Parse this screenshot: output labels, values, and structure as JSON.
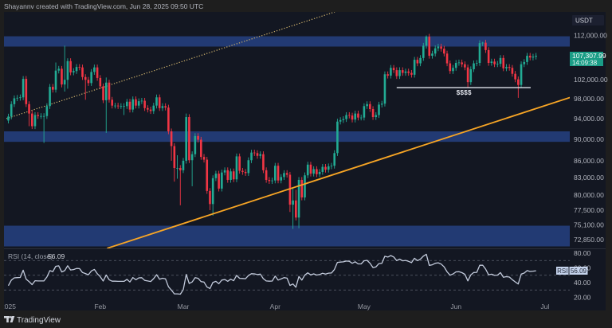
{
  "header": {
    "attribution": "Shayannv created with TradingView.com, Jun 28, 2025 09:50 UTC"
  },
  "price_axis": {
    "currency": "USDT",
    "last_price": "107,307.99",
    "countdown": "14:09:38",
    "labels": [
      {
        "text": "112,000.00",
        "price": 112.0
      },
      {
        "text": "102,000.00",
        "price": 102.0
      },
      {
        "text": "98,000.00",
        "price": 98.0
      },
      {
        "text": "94,000.00",
        "price": 94.0
      },
      {
        "text": "90,000.00",
        "price": 90.0
      },
      {
        "text": "86,000.00",
        "price": 86.0
      },
      {
        "text": "83,000.00",
        "price": 83.0
      },
      {
        "text": "80,000.00",
        "price": 80.0
      },
      {
        "text": "77,500.00",
        "price": 77.5
      },
      {
        "text": "75,100.00",
        "price": 75.1
      },
      {
        "text": "72,850.00",
        "price": 72.85
      }
    ]
  },
  "rsi": {
    "legend_name": "RSI (14, close)",
    "legend_value": "56.09",
    "tag_name": "RSI",
    "tag_value": "56.09",
    "axis_labels": [
      {
        "text": "80.00",
        "value": 80
      },
      {
        "text": "60.00",
        "value": 60
      },
      {
        "text": "40.00",
        "value": 40
      },
      {
        "text": "20.00",
        "value": 20
      }
    ]
  },
  "time_axis": {
    "labels": [
      {
        "text": "2025",
        "day": 0
      },
      {
        "text": "Feb",
        "day": 31
      },
      {
        "text": "Mar",
        "day": 59
      },
      {
        "text": "Apr",
        "day": 90
      },
      {
        "text": "May",
        "day": 120
      },
      {
        "text": "Jun",
        "day": 151
      },
      {
        "text": "Jul",
        "day": 181
      }
    ]
  },
  "annotations": {
    "liquidity_label": "$$$$"
  },
  "footer": {
    "brand": "TradingView"
  },
  "colors": {
    "background": "#131722",
    "outer": "#1e1e1e",
    "up": "#22ab94",
    "down": "#f23645",
    "zone": "#223a73",
    "support_line": "#f7a525",
    "channel_line": "#c9ad6a",
    "liquidity_line": "#e0e3eb",
    "rsi_line": "#c3cbdc",
    "rsi_levels": "#5d6270",
    "last_price_tag": "#1a9d86",
    "rsi_tag": "#c5d3ec"
  },
  "chart_data": {
    "type": "candlestick",
    "title": "Shayannv created with TradingView.com, Jun 28, 2025 09:50 UTC",
    "quote_currency": "USDT",
    "price_unit": "thousand USDT",
    "y_scale": "log",
    "ylim": [
      71.5,
      117.7
    ],
    "x_tick_labels": [
      "2025",
      "Feb",
      "Mar",
      "Apr",
      "May",
      "Jun",
      "Jul"
    ],
    "y_tick_labels": [
      "112,000.00",
      "102,000.00",
      "98,000.00",
      "94,000.00",
      "90,000.00",
      "86,000.00",
      "83,000.00",
      "80,000.00",
      "77,500.00",
      "75,100.00",
      "72,850.00"
    ],
    "last_price": 107307.99,
    "first_open": 93.6,
    "close": [
      94.4,
      96.9,
      98.1,
      98.2,
      98.3,
      102.2,
      96.9,
      95.0,
      92.5,
      94.7,
      94.5,
      94.5,
      94.5,
      96.5,
      100.5,
      99.9,
      104.0,
      104.4,
      101.0,
      102.0,
      106.1,
      103.6,
      103.9,
      104.8,
      104.7,
      102.6,
      102.0,
      101.3,
      103.7,
      104.7,
      102.4,
      100.6,
      97.7,
      101.4,
      97.8,
      96.6,
      96.6,
      96.5,
      96.5,
      96.5,
      97.4,
      95.8,
      97.9,
      96.6,
      97.5,
      97.6,
      96.1,
      95.8,
      95.5,
      96.6,
      98.3,
      96.1,
      96.5,
      96.2,
      91.5,
      88.7,
      84.7,
      84.7,
      84.3,
      86.0,
      94.3,
      86.1,
      87.2,
      90.6,
      89.9,
      86.7,
      86.2,
      80.7,
      78.5,
      82.9,
      83.7,
      81.1,
      83.9,
      84.3,
      82.6,
      84.1,
      82.7,
      86.8,
      84.2,
      84.0,
      83.8,
      86.1,
      87.5,
      87.4,
      86.9,
      87.2,
      84.3,
      82.6,
      82.4,
      82.5,
      85.1,
      82.5,
      83.1,
      83.8,
      83.5,
      78.4,
      79.1,
      76.3,
      82.6,
      79.6,
      83.4,
      85.3,
      83.7,
      84.5,
      83.6,
      84.0,
      84.9,
      84.4,
      85.0,
      85.1,
      87.4,
      93.4,
      93.7,
      93.9,
      94.7,
      94.6,
      93.8,
      95.0,
      94.2,
      94.2,
      96.5,
      96.9,
      95.9,
      94.3,
      94.7,
      96.8,
      97.0,
      103.2,
      102.9,
      104.6,
      104.1,
      102.8,
      104.1,
      103.5,
      103.8,
      103.5,
      103.1,
      106.4,
      105.6,
      106.8,
      109.6,
      111.7,
      107.3,
      107.8,
      109.0,
      109.4,
      108.9,
      107.8,
      105.6,
      103.9,
      104.6,
      105.7,
      105.8,
      105.4,
      104.7,
      101.5,
      104.3,
      105.6,
      105.7,
      110.2,
      110.3,
      108.6,
      105.7,
      106.0,
      105.4,
      105.5,
      106.8,
      104.5,
      104.8,
      104.6,
      103.3,
      102.1,
      100.9,
      105.4,
      105.9,
      107.3,
      106.9,
      107.1,
      107.3
    ],
    "wicks": {
      "5": {
        "h": 102.8
      },
      "7": {
        "l": 92.5
      },
      "12": {
        "l": 89.3
      },
      "16": {
        "h": 105.8
      },
      "19": {
        "h": 109.6,
        "l": 99.5
      },
      "20": {
        "l": 100.1
      },
      "26": {
        "l": 97.8
      },
      "33": {
        "h": 102.5,
        "l": 91.2
      },
      "39": {
        "l": 94.7
      },
      "55": {
        "l": 86.0
      },
      "56": {
        "l": 82.3
      },
      "57": {
        "h": 87.0,
        "l": 82.8
      },
      "58": {
        "l": 78.3
      },
      "60": {
        "h": 95.0
      },
      "62": {
        "l": 81.5
      },
      "68": {
        "l": 77.5
      },
      "69": {
        "l": 76.6
      },
      "95": {
        "l": 77.2
      },
      "96": {
        "h": 81.2,
        "l": 74.5
      },
      "97": {
        "h": 80.9
      },
      "98": {
        "l": 74.6
      },
      "141": {
        "h": 112.0
      },
      "155": {
        "l": 100.4
      },
      "160": {
        "h": 110.5
      },
      "172": {
        "l": 98.2
      }
    },
    "zones": [
      {
        "name": "resistance-zone-112k",
        "top": 111.8,
        "bottom": 109.4
      },
      {
        "name": "support-zone-90k",
        "top": 91.5,
        "bottom": 89.5
      },
      {
        "name": "demand-zone-73k",
        "top": 75.0,
        "bottom": 71.8
      }
    ],
    "trendlines": [
      {
        "name": "ascending-support-line",
        "style": "solid",
        "start": {
          "day": 33.5,
          "price": 71.53
        },
        "end": {
          "day": 189.9,
          "price": 98.36
        }
      },
      {
        "name": "channel-dotted-line",
        "style": "dotted",
        "start": {
          "day": -0.67,
          "price": 93.99
        },
        "end": {
          "day": 110.1,
          "price": 117.68
        }
      },
      {
        "name": "liquidity-line",
        "style": "solid",
        "start": {
          "day": 131,
          "price": 100.34
        },
        "end": {
          "day": 176.2,
          "price": 100.34
        }
      }
    ],
    "annotations": [
      {
        "text": "$$$$",
        "day": 153.7,
        "price": 99.3
      }
    ],
    "rsi": {
      "period": 14,
      "source": "close",
      "last": 56.09,
      "levels": [
        70,
        50,
        30
      ],
      "ylim": [
        20,
        80
      ],
      "prior_closes": [
        100.2,
        97.5,
        97.8,
        97.3,
        95.2,
        94.9,
        98.7,
        99.4,
        95.8,
        94.2,
        95.2,
        93.6,
        92.8,
        93.6
      ]
    }
  }
}
